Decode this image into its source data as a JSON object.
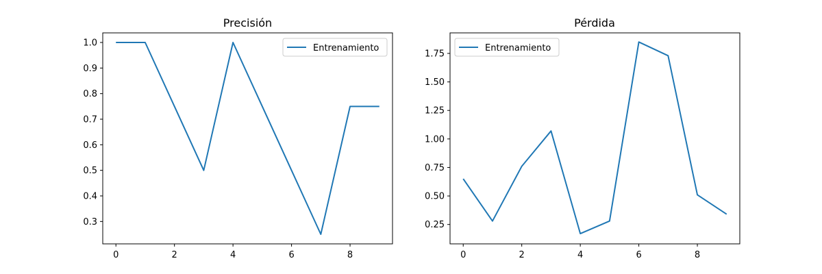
{
  "chart_data": [
    {
      "type": "line",
      "title": "Precisión",
      "xlabel": "",
      "ylabel": "",
      "xlim": [
        -0.45,
        9.45
      ],
      "ylim": [
        0.2125,
        1.0375
      ],
      "xticks": [
        0,
        2,
        4,
        6,
        8
      ],
      "xtick_labels": [
        "0",
        "2",
        "4",
        "6",
        "8"
      ],
      "yticks": [
        0.3,
        0.4,
        0.5,
        0.6,
        0.7,
        0.8,
        0.9,
        1.0
      ],
      "ytick_labels": [
        "0.3",
        "0.4",
        "0.5",
        "0.6",
        "0.7",
        "0.8",
        "0.9",
        "1.0"
      ],
      "grid": false,
      "legend_position": "top-right",
      "series": [
        {
          "name": "Entrenamiento",
          "color": "#1f77b4",
          "x": [
            0,
            1,
            2,
            3,
            4,
            5,
            6,
            7,
            8,
            9
          ],
          "values": [
            1.0,
            1.0,
            0.75,
            0.5,
            1.0,
            0.75,
            0.5,
            0.25,
            0.75,
            0.75
          ]
        }
      ]
    },
    {
      "type": "line",
      "title": "Pérdida",
      "xlabel": "",
      "ylabel": "",
      "xlim": [
        -0.45,
        9.45
      ],
      "ylim": [
        0.08,
        1.93
      ],
      "xticks": [
        0,
        2,
        4,
        6,
        8
      ],
      "xtick_labels": [
        "0",
        "2",
        "4",
        "6",
        "8"
      ],
      "yticks": [
        0.25,
        0.5,
        0.75,
        1.0,
        1.25,
        1.5,
        1.75
      ],
      "ytick_labels": [
        "0.25",
        "0.50",
        "0.75",
        "1.00",
        "1.25",
        "1.50",
        "1.75"
      ],
      "grid": false,
      "legend_position": "top-left",
      "series": [
        {
          "name": "Entrenamiento",
          "color": "#1f77b4",
          "x": [
            0,
            1,
            2,
            3,
            4,
            5,
            6,
            7,
            8,
            9
          ],
          "values": [
            0.65,
            0.28,
            0.76,
            1.07,
            0.17,
            0.28,
            1.85,
            1.73,
            0.51,
            0.34
          ]
        }
      ]
    }
  ]
}
